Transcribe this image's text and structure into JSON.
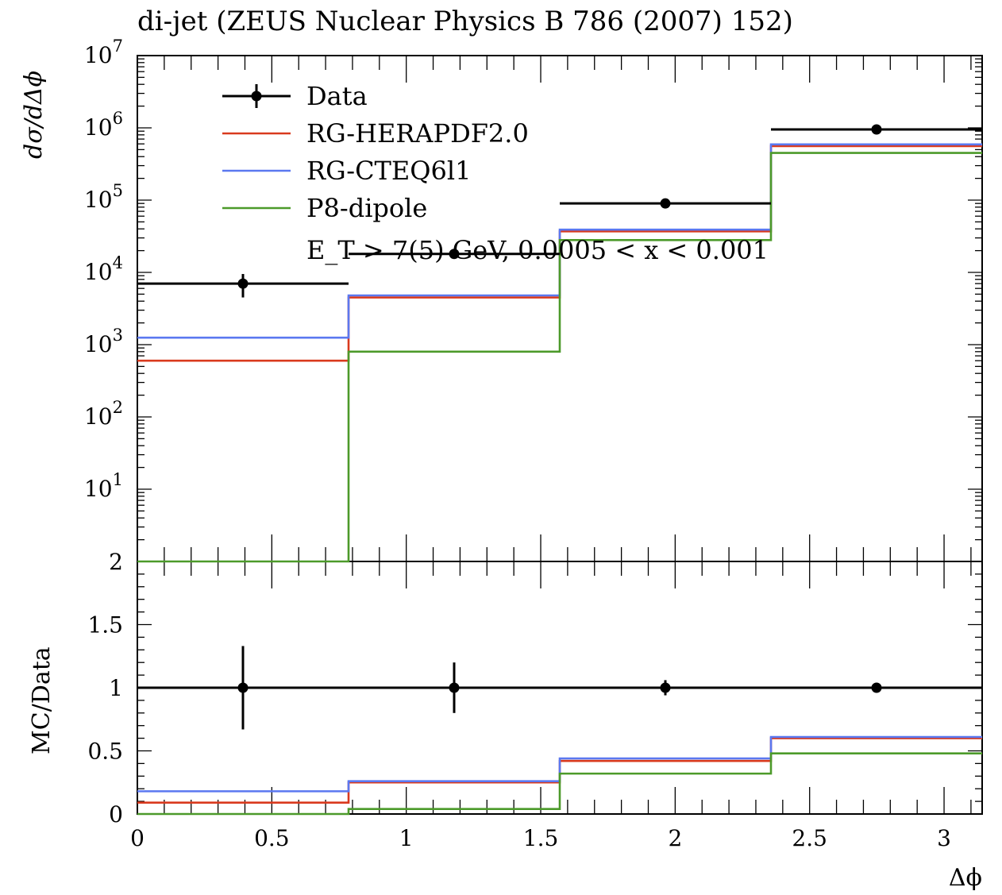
{
  "chart_data": {
    "type": "line",
    "title": "di-jet (ZEUS Nuclear Physics B 786 (2007) 152)",
    "annotation": "E_T > 7(5) GeV, 0.0005 < x < 0.001",
    "xlabel": "Δϕ",
    "xlim": [
      0,
      3.1416
    ],
    "bin_edges": [
      0,
      0.7854,
      1.5708,
      2.3562,
      3.1416
    ],
    "x_ticks": [
      {
        "value": 0,
        "label": "0"
      },
      {
        "value": 0.5,
        "label": "0.5"
      },
      {
        "value": 1,
        "label": "1"
      },
      {
        "value": 1.5,
        "label": "1.5"
      },
      {
        "value": 2,
        "label": "2"
      },
      {
        "value": 2.5,
        "label": "2.5"
      },
      {
        "value": 3,
        "label": "3"
      }
    ],
    "main": {
      "ylabel": "dσ/dΔϕ",
      "yscale": "log",
      "ylim": [
        1,
        10000000
      ],
      "y_ticks": [
        {
          "value": 10,
          "base": "10",
          "exp": "1"
        },
        {
          "value": 100,
          "base": "10",
          "exp": "2"
        },
        {
          "value": 1000,
          "base": "10",
          "exp": "3"
        },
        {
          "value": 10000,
          "base": "10",
          "exp": "4"
        },
        {
          "value": 100000,
          "base": "10",
          "exp": "5"
        },
        {
          "value": 1000000,
          "base": "10",
          "exp": "6"
        },
        {
          "value": 10000000,
          "base": "10",
          "exp": "7"
        }
      ],
      "data": {
        "name": "Data",
        "x": [
          0.3927,
          1.1781,
          1.9635,
          2.7489
        ],
        "y": [
          7000,
          18000,
          90000,
          950000
        ],
        "yerr_low": [
          2500,
          0,
          0,
          0
        ],
        "yerr_high": [
          2500,
          0,
          0,
          0
        ]
      },
      "series": [
        {
          "name": "RG-HERAPDF2.0",
          "color": "#d93a1e",
          "values": [
            600,
            4500,
            37000,
            560000
          ]
        },
        {
          "name": "RG-CTEQ6l1",
          "color": "#5b78f0",
          "values": [
            1250,
            4800,
            39000,
            590000
          ]
        },
        {
          "name": "P8-dipole",
          "color": "#4c9a2a",
          "values": [
            1,
            800,
            28000,
            450000
          ]
        }
      ]
    },
    "ratio": {
      "ylabel": "MC/Data",
      "ylim": [
        0,
        2
      ],
      "y_ticks": [
        {
          "value": 0,
          "label": "0"
        },
        {
          "value": 0.5,
          "label": "0.5"
        },
        {
          "value": 1,
          "label": "1"
        },
        {
          "value": 1.5,
          "label": "1.5"
        },
        {
          "value": 2,
          "label": "2"
        }
      ],
      "data": {
        "x": [
          0.3927,
          1.1781,
          1.9635,
          2.7489
        ],
        "y": [
          1,
          1,
          1,
          1
        ],
        "yerr_low": [
          0.33,
          0.2,
          0.06,
          0.03
        ],
        "yerr_high": [
          0.33,
          0.2,
          0.06,
          0.03
        ]
      },
      "series": [
        {
          "name": "RG-HERAPDF2.0",
          "color": "#d93a1e",
          "values": [
            0.09,
            0.25,
            0.42,
            0.6
          ]
        },
        {
          "name": "RG-CTEQ6l1",
          "color": "#5b78f0",
          "values": [
            0.18,
            0.26,
            0.44,
            0.61
          ]
        },
        {
          "name": "P8-dipole",
          "color": "#4c9a2a",
          "values": [
            0,
            0.04,
            0.32,
            0.48
          ]
        }
      ]
    },
    "legend": {
      "placement": "top-left",
      "entries": [
        {
          "name": "Data",
          "color": "#000000",
          "marker": "point-errorbar"
        },
        {
          "name": "RG-HERAPDF2.0",
          "color": "#d93a1e",
          "marker": "line"
        },
        {
          "name": "RG-CTEQ6l1",
          "color": "#5b78f0",
          "marker": "line"
        },
        {
          "name": "P8-dipole",
          "color": "#4c9a2a",
          "marker": "line"
        }
      ]
    }
  }
}
